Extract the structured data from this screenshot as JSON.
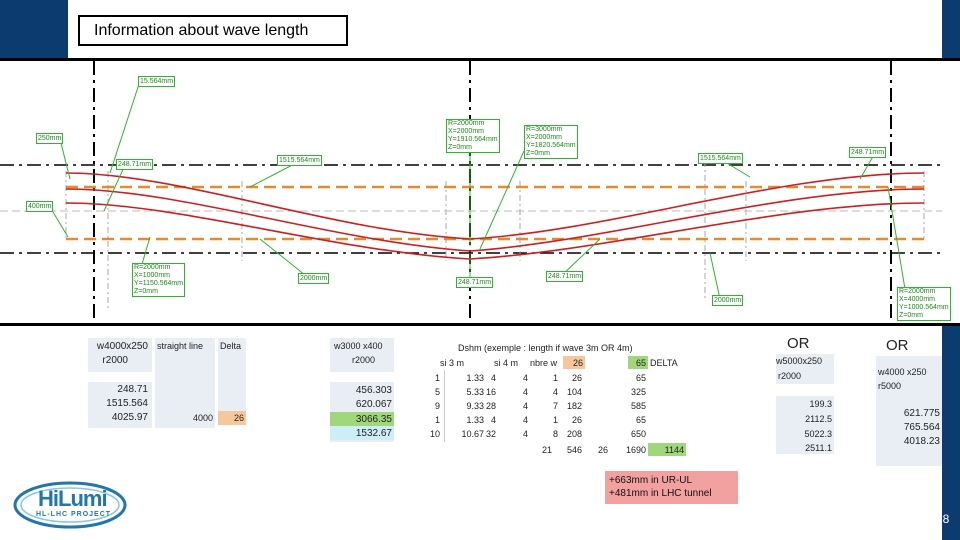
{
  "slide": {
    "title": "Information about wave length",
    "page_number": "8"
  },
  "colors": {
    "brand_navy": "#0b3b6f",
    "curve_red": "#cc1f1f",
    "dash_orange": "#e88a2a",
    "label_green": "#2db52d",
    "note_pink": "#f2a0a0"
  },
  "drawing": {
    "labels": [
      "15.564mm",
      "250mm",
      "248.71mm",
      "400mm",
      "1515.564mm",
      "R=2000mm\nX=2000mm\nY=1910.564mm\nZ=0mm",
      "R=3000mm\nX=2000mm\nY=1820.564mm\nZ=0mm",
      "1515.564mm",
      "248.71mm",
      "R=2000mm\nX=1000mm\nY=1150.564mm\nZ=0mm",
      "2000mm",
      "248.71mm",
      "248.71mm",
      "2000mm",
      "R=2000mm\nX=4000mm\nY=1000.564mm\nZ=0mm"
    ]
  },
  "table_left": {
    "header_w": "w4000x250",
    "header_r": "r2000",
    "col_straight": "straight line",
    "col_delta": "Delta",
    "values": [
      "248.71",
      "1515.564",
      "4025.97"
    ],
    "straight_value": "4000",
    "delta_value": "26"
  },
  "table_mid": {
    "header_w": "w3000 x400",
    "header_r": "r2000",
    "values": [
      "456.303",
      "620.067",
      "3066.35",
      "1532.67"
    ]
  },
  "table_dshm": {
    "title": "Dshm (exemple : length if wave 3m OR 4m)",
    "headers": [
      "si 3 m",
      "si 4 m",
      "nbre w",
      "26",
      "65",
      "DELTA"
    ],
    "rows": [
      [
        "1",
        "1.33",
        "4",
        "4",
        "1",
        "26",
        "65"
      ],
      [
        "5",
        "5.33",
        "16",
        "4",
        "4",
        "104",
        "325"
      ],
      [
        "9",
        "9.33",
        "28",
        "4",
        "7",
        "182",
        "585"
      ],
      [
        "1",
        "1.33",
        "4",
        "4",
        "1",
        "26",
        "65"
      ],
      [
        "10",
        "10.67",
        "32",
        "4",
        "8",
        "208",
        "650"
      ]
    ],
    "total_row": [
      "21",
      "546",
      "26",
      "1690",
      "1144"
    ]
  },
  "note": {
    "line1": "+663mm in UR-UL",
    "line2": "+481mm in LHC tunnel"
  },
  "or_block_1": {
    "or_label": "OR",
    "header": "w5000x250",
    "r": "r2000",
    "values": [
      "199.3",
      "2112.5",
      "5022.3",
      "2511.1"
    ]
  },
  "or_block_2": {
    "or_label": "OR",
    "header": "w4000 x250",
    "r": "r5000",
    "values": [
      "621.775",
      "765.564",
      "4018.23"
    ]
  },
  "logo": {
    "name": "HiLumi",
    "subtitle": "HL-LHC PROJECT"
  }
}
